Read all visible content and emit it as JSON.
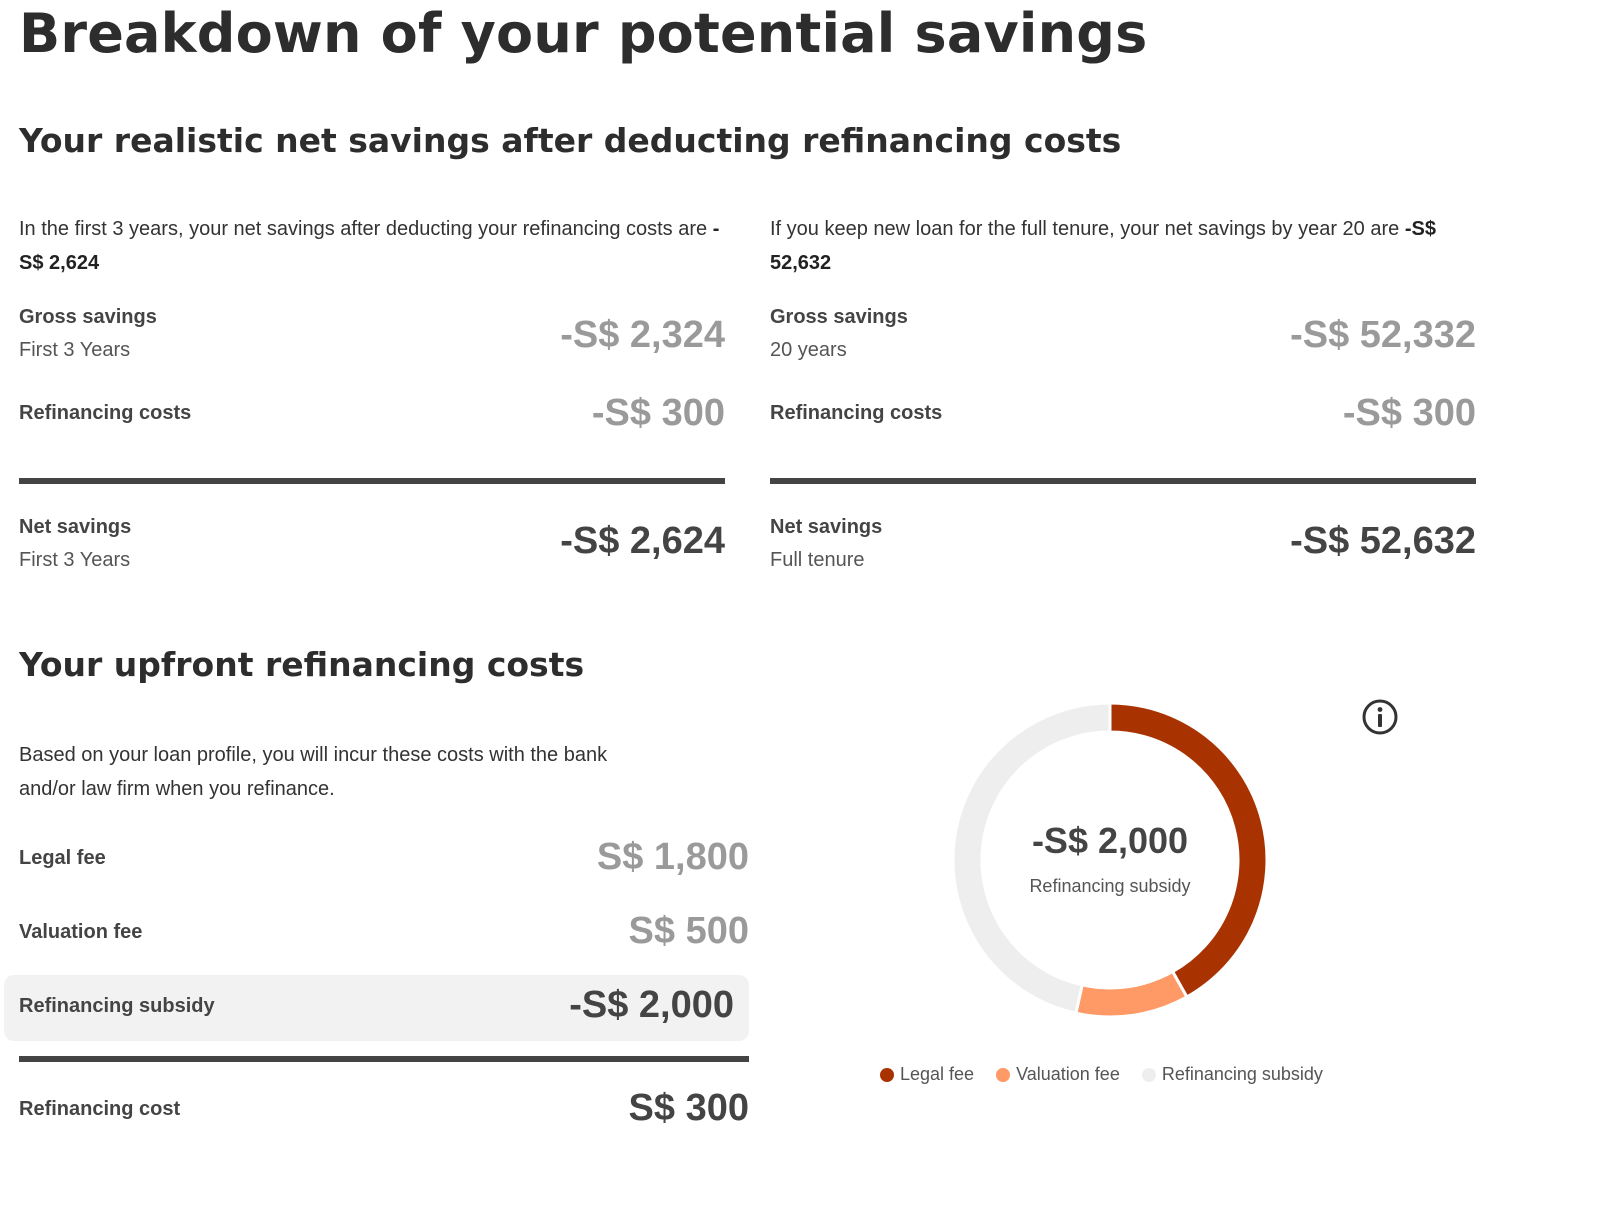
{
  "page_title": "Breakdown of your potential savings",
  "net_section": {
    "title": "Your realistic net savings after deducting refinancing costs",
    "left": {
      "intro_text": "In the first 3 years, your net savings after deducting your refinancing costs are ",
      "intro_amount": "-S$ 2,624",
      "gross_label": "Gross savings",
      "gross_sub": "First 3 Years",
      "gross_value": "-S$ 2,324",
      "cost_label": "Refinancing costs",
      "cost_value": "-S$ 300",
      "net_label": "Net savings",
      "net_sub": "First 3 Years",
      "net_value": "-S$ 2,624"
    },
    "right": {
      "intro_text": "If you keep new loan for the full tenure, your net savings by year 20 are ",
      "intro_amount": "-S$ 52,632",
      "gross_label": "Gross savings",
      "gross_sub": "20 years",
      "gross_value": "-S$ 52,332",
      "cost_label": "Refinancing costs",
      "cost_value": "-S$ 300",
      "net_label": "Net savings",
      "net_sub": "Full tenure",
      "net_value": "-S$ 52,632"
    }
  },
  "upfront_section": {
    "title": "Your upfront refinancing costs",
    "intro": "Based on your loan profile, you will incur these costs with the bank and/or law firm when you refinance.",
    "rows": [
      {
        "label": "Legal fee",
        "value": "S$ 1,800"
      },
      {
        "label": "Valuation fee",
        "value": "S$ 500"
      },
      {
        "label": "Refinancing subsidy",
        "value": "-S$ 2,000"
      }
    ],
    "total_label": "Refinancing cost",
    "total_value": "S$ 300"
  },
  "chart_data": {
    "type": "pie",
    "variant": "donut",
    "center_value": "-S$ 2,000",
    "center_label": "Refinancing subsidy",
    "series": [
      {
        "name": "Legal fee",
        "value": 1800,
        "color": "#a83200"
      },
      {
        "name": "Valuation fee",
        "value": 500,
        "color": "#ff9966"
      },
      {
        "name": "Refinancing subsidy",
        "value": 2000,
        "color": "#eeeeee"
      }
    ],
    "legend_position": "bottom"
  },
  "icons": {
    "info": "info-icon"
  }
}
